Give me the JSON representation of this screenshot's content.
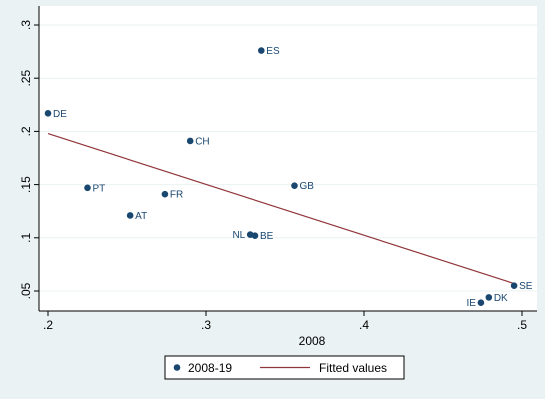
{
  "chart_data": {
    "type": "scatter",
    "xlabel": "2008",
    "ylabel": "",
    "xlim": [
      0.2,
      0.5
    ],
    "ylim": [
      0.05,
      0.3
    ],
    "x_ticks": [
      0.2,
      0.3,
      0.4,
      0.5
    ],
    "x_tick_labels": [
      ".2",
      ".3",
      ".4",
      ".5"
    ],
    "y_ticks": [
      0.05,
      0.1,
      0.15,
      0.2,
      0.25,
      0.3
    ],
    "y_tick_labels": [
      ".05",
      ".1",
      ".15",
      ".2",
      ".25",
      ".3"
    ],
    "grid": "horizontal",
    "legend_position": "bottom",
    "colors": {
      "points": "#1a476f",
      "fit_line": "#90353b",
      "plot_bg": "#ffffff",
      "outer_bg": "#eaf2f3"
    },
    "series": [
      {
        "name": "2008-19",
        "points": [
          {
            "label": "DE",
            "x": 0.2,
            "y": 0.217
          },
          {
            "label": "PT",
            "x": 0.225,
            "y": 0.147
          },
          {
            "label": "AT",
            "x": 0.252,
            "y": 0.121
          },
          {
            "label": "FR",
            "x": 0.274,
            "y": 0.141
          },
          {
            "label": "CH",
            "x": 0.29,
            "y": 0.191
          },
          {
            "label": "NL",
            "x": 0.328,
            "y": 0.103
          },
          {
            "label": "BE",
            "x": 0.331,
            "y": 0.102
          },
          {
            "label": "ES",
            "x": 0.335,
            "y": 0.276
          },
          {
            "label": "GB",
            "x": 0.356,
            "y": 0.149
          },
          {
            "label": "IE",
            "x": 0.474,
            "y": 0.039
          },
          {
            "label": "DK",
            "x": 0.479,
            "y": 0.044
          },
          {
            "label": "SE",
            "x": 0.495,
            "y": 0.055
          }
        ]
      },
      {
        "name": "Fitted values",
        "type": "line",
        "x": [
          0.2,
          0.495
        ],
        "y": [
          0.198,
          0.057
        ]
      }
    ]
  }
}
